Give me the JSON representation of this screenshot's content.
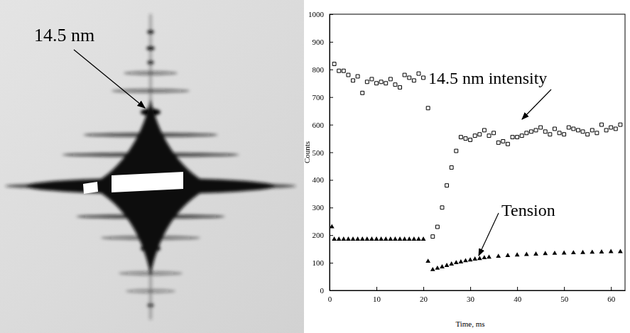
{
  "photo": {
    "label": "14.5 nm"
  },
  "chart_data": {
    "type": "scatter",
    "x_label": "Time, ms",
    "y_label": "Counts",
    "xlim": [
      0,
      63
    ],
    "xticks": [
      0,
      10,
      20,
      30,
      40,
      50,
      60
    ],
    "ylim": [
      0,
      1000
    ],
    "yticks": [
      0,
      100,
      200,
      300,
      400,
      500,
      600,
      700,
      800,
      900,
      1000
    ],
    "grid": false,
    "series": [
      {
        "name": "14.5 nm intensity",
        "color": "#000000",
        "marker": "square-open",
        "x": [
          1,
          2,
          3,
          4,
          5,
          6,
          7,
          8,
          9,
          10,
          11,
          12,
          13,
          14,
          15,
          16,
          17,
          18,
          19,
          20,
          21,
          22,
          23,
          24,
          25,
          26,
          27,
          28,
          29,
          30,
          31,
          32,
          33,
          34,
          35,
          36,
          37,
          38,
          39,
          40,
          41,
          42,
          43,
          44,
          45,
          46,
          47,
          48,
          49,
          50,
          51,
          52,
          53,
          54,
          55,
          56,
          57,
          58,
          59,
          60,
          61,
          62
        ],
        "values": [
          820,
          795,
          795,
          780,
          760,
          775,
          715,
          755,
          765,
          750,
          755,
          750,
          765,
          745,
          735,
          780,
          770,
          760,
          785,
          770,
          660,
          195,
          230,
          300,
          380,
          445,
          505,
          555,
          550,
          545,
          560,
          565,
          580,
          560,
          570,
          535,
          540,
          530,
          555,
          555,
          560,
          570,
          575,
          580,
          590,
          575,
          565,
          585,
          570,
          565,
          590,
          585,
          580,
          575,
          565,
          580,
          570,
          600,
          580,
          590,
          585,
          600
        ]
      },
      {
        "name": "Tension",
        "color": "#000000",
        "marker": "triangle",
        "x": [
          0.5,
          1,
          2,
          3,
          4,
          5,
          6,
          7,
          8,
          9,
          10,
          11,
          12,
          13,
          14,
          15,
          16,
          17,
          18,
          19,
          20,
          21,
          22,
          23,
          24,
          25,
          26,
          27,
          28,
          29,
          30,
          31,
          32,
          33,
          34,
          36,
          38,
          40,
          42,
          44,
          46,
          48,
          50,
          52,
          54,
          56,
          58,
          60,
          62
        ],
        "values": [
          230,
          185,
          185,
          185,
          185,
          185,
          185,
          185,
          185,
          185,
          185,
          185,
          185,
          185,
          185,
          185,
          185,
          185,
          185,
          185,
          185,
          105,
          75,
          80,
          85,
          90,
          95,
          100,
          103,
          107,
          110,
          113,
          115,
          118,
          120,
          123,
          126,
          128,
          130,
          131,
          133,
          134,
          135,
          136,
          137,
          138,
          139,
          140,
          140
        ]
      }
    ]
  }
}
